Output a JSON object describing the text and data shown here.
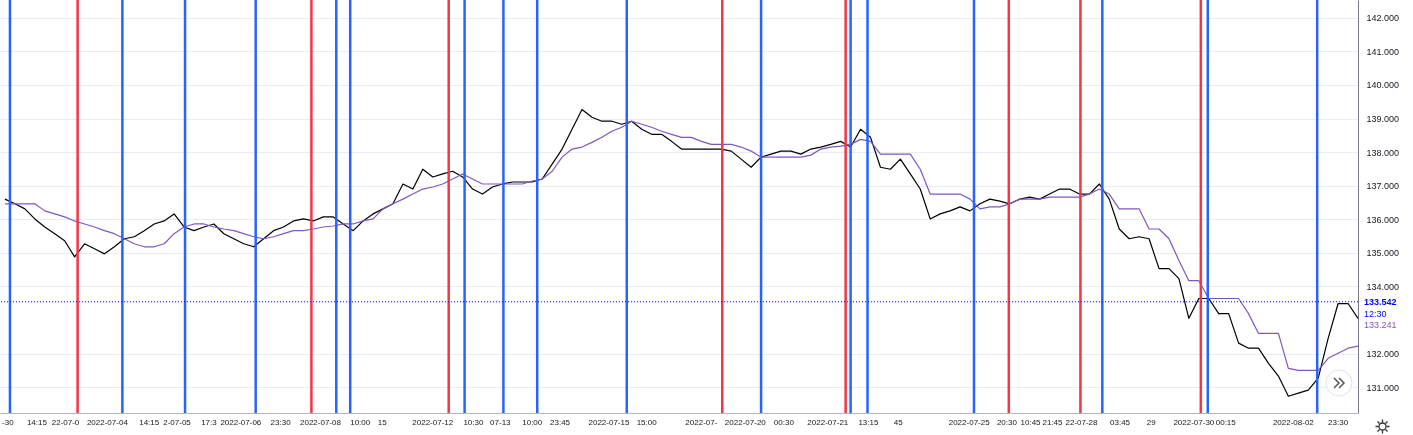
{
  "chart_data": {
    "type": "line",
    "x": [
      "2022-06-30T21:00",
      "2022-07-01T03:00",
      "2022-07-01T09:00",
      "2022-07-01T15:00",
      "2022-07-01T21:00",
      "2022-07-02T03:00",
      "2022-07-02T09:00",
      "2022-07-02T15:00",
      "2022-07-02T21:00",
      "2022-07-03T03:00",
      "2022-07-03T09:00",
      "2022-07-03T15:00",
      "2022-07-03T21:00",
      "2022-07-04T03:00",
      "2022-07-04T09:00",
      "2022-07-04T15:00",
      "2022-07-04T21:00",
      "2022-07-05T03:00",
      "2022-07-05T09:00",
      "2022-07-05T15:00",
      "2022-07-05T21:00",
      "2022-07-06T03:00",
      "2022-07-06T09:00",
      "2022-07-06T15:00",
      "2022-07-06T21:00",
      "2022-07-07T03:00",
      "2022-07-07T09:00",
      "2022-07-07T15:00",
      "2022-07-07T21:00",
      "2022-07-08T03:00",
      "2022-07-08T09:00",
      "2022-07-08T15:00",
      "2022-07-08T21:00",
      "2022-07-09T03:00",
      "2022-07-09T09:00",
      "2022-07-09T15:00",
      "2022-07-09T21:00",
      "2022-07-10T03:00",
      "2022-07-10T09:00",
      "2022-07-10T15:00",
      "2022-07-10T21:00",
      "2022-07-11T03:00",
      "2022-07-11T09:00",
      "2022-07-11T15:00",
      "2022-07-11T21:00",
      "2022-07-12T03:00",
      "2022-07-12T09:00",
      "2022-07-12T15:00",
      "2022-07-12T21:00",
      "2022-07-13T03:00",
      "2022-07-13T09:00",
      "2022-07-13T15:00",
      "2022-07-13T21:00",
      "2022-07-14T03:00",
      "2022-07-14T09:00",
      "2022-07-14T15:00",
      "2022-07-14T21:00",
      "2022-07-15T03:00",
      "2022-07-15T09:00",
      "2022-07-15T15:00",
      "2022-07-15T21:00",
      "2022-07-16T03:00",
      "2022-07-16T09:00",
      "2022-07-16T15:00",
      "2022-07-16T21:00",
      "2022-07-17T03:00",
      "2022-07-17T09:00",
      "2022-07-17T15:00",
      "2022-07-17T21:00",
      "2022-07-18T03:00",
      "2022-07-18T09:00",
      "2022-07-18T15:00",
      "2022-07-18T21:00",
      "2022-07-19T03:00",
      "2022-07-19T09:00",
      "2022-07-19T15:00",
      "2022-07-19T21:00",
      "2022-07-20T03:00",
      "2022-07-20T09:00",
      "2022-07-20T15:00",
      "2022-07-20T21:00",
      "2022-07-21T03:00",
      "2022-07-21T09:00",
      "2022-07-21T15:00",
      "2022-07-21T21:00",
      "2022-07-22T03:00",
      "2022-07-22T09:00",
      "2022-07-22T15:00",
      "2022-07-22T21:00",
      "2022-07-23T03:00",
      "2022-07-23T09:00",
      "2022-07-23T15:00",
      "2022-07-23T21:00",
      "2022-07-24T03:00",
      "2022-07-24T09:00",
      "2022-07-24T15:00",
      "2022-07-24T21:00",
      "2022-07-25T03:00",
      "2022-07-25T09:00",
      "2022-07-25T15:00",
      "2022-07-25T21:00",
      "2022-07-26T03:00",
      "2022-07-26T09:00",
      "2022-07-26T15:00",
      "2022-07-26T21:00",
      "2022-07-27T03:00",
      "2022-07-27T09:00",
      "2022-07-27T15:00",
      "2022-07-27T21:00",
      "2022-07-28T03:00",
      "2022-07-28T09:00",
      "2022-07-28T15:00",
      "2022-07-28T21:00",
      "2022-07-29T03:00",
      "2022-07-29T09:00",
      "2022-07-29T15:00",
      "2022-07-29T21:00",
      "2022-07-30T03:00",
      "2022-07-30T09:00",
      "2022-07-30T15:00",
      "2022-07-30T21:00",
      "2022-07-31T03:00",
      "2022-07-31T09:00",
      "2022-07-31T15:00",
      "2022-07-31T21:00",
      "2022-08-01T03:00",
      "2022-08-01T09:00",
      "2022-08-01T15:00",
      "2022-08-01T21:00",
      "2022-08-02T03:00",
      "2022-08-02T09:00",
      "2022-08-02T15:00",
      "2022-08-02T21:00",
      "2022-08-03T03:00",
      "2022-08-03T09:00",
      "2022-08-03T15:00",
      "2022-08-03T21:00"
    ],
    "series": [
      {
        "color": "#000000",
        "values": [
          136.6,
          136.46,
          136.31,
          136.01,
          135.77,
          135.57,
          135.36,
          134.88,
          135.27,
          135.12,
          134.97,
          135.18,
          135.42,
          135.48,
          135.66,
          135.86,
          135.95,
          136.16,
          135.77,
          135.66,
          135.77,
          135.86,
          135.57,
          135.42,
          135.27,
          135.18,
          135.42,
          135.66,
          135.77,
          135.95,
          136.01,
          135.95,
          136.07,
          136.07,
          135.86,
          135.66,
          135.95,
          136.16,
          136.31,
          136.46,
          137.05,
          136.9,
          137.49,
          137.26,
          137.35,
          137.43,
          137.26,
          136.9,
          136.75,
          136.96,
          137.05,
          137.11,
          137.11,
          137.11,
          137.2,
          137.64,
          138.09,
          138.68,
          139.27,
          139.04,
          138.92,
          138.92,
          138.83,
          138.92,
          138.68,
          138.53,
          138.53,
          138.32,
          138.09,
          138.09,
          138.09,
          138.09,
          138.09,
          138.03,
          137.79,
          137.55,
          137.85,
          137.94,
          138.03,
          138.03,
          137.94,
          138.09,
          138.15,
          138.23,
          138.32,
          138.15,
          138.68,
          138.44,
          137.55,
          137.49,
          137.79,
          137.35,
          136.9,
          136.01,
          136.16,
          136.25,
          136.37,
          136.25,
          136.46,
          136.6,
          136.54,
          136.46,
          136.6,
          136.66,
          136.6,
          136.75,
          136.9,
          136.9,
          136.75,
          136.75,
          137.05,
          136.6,
          135.71,
          135.42,
          135.48,
          135.42,
          134.53,
          134.53,
          134.23,
          133.05,
          133.64,
          133.64,
          133.19,
          133.19,
          132.31,
          132.16,
          132.16,
          131.71,
          131.33,
          130.73,
          130.82,
          130.91,
          131.27,
          132.45,
          133.49,
          133.49,
          133.05
        ]
      },
      {
        "color": "#7e57c2",
        "values": [
          136.46,
          136.46,
          136.46,
          136.46,
          136.25,
          136.16,
          136.07,
          135.95,
          135.86,
          135.77,
          135.66,
          135.57,
          135.42,
          135.27,
          135.18,
          135.18,
          135.27,
          135.57,
          135.77,
          135.86,
          135.86,
          135.77,
          135.71,
          135.66,
          135.57,
          135.48,
          135.42,
          135.48,
          135.57,
          135.66,
          135.66,
          135.71,
          135.77,
          135.8,
          135.86,
          135.86,
          135.95,
          136.01,
          136.31,
          136.46,
          136.6,
          136.75,
          136.9,
          136.96,
          137.05,
          137.2,
          137.35,
          137.2,
          137.05,
          137.05,
          137.05,
          137.05,
          137.05,
          137.14,
          137.2,
          137.43,
          137.85,
          138.09,
          138.15,
          138.29,
          138.44,
          138.62,
          138.74,
          138.92,
          138.83,
          138.74,
          138.62,
          138.53,
          138.44,
          138.44,
          138.32,
          138.23,
          138.23,
          138.23,
          138.15,
          138.03,
          137.85,
          137.85,
          137.85,
          137.85,
          137.85,
          137.91,
          138.09,
          138.15,
          138.18,
          138.23,
          138.38,
          138.32,
          137.94,
          137.94,
          137.94,
          137.94,
          137.49,
          136.75,
          136.75,
          136.75,
          136.75,
          136.6,
          136.31,
          136.37,
          136.37,
          136.46,
          136.6,
          136.6,
          136.6,
          136.66,
          136.66,
          136.66,
          136.66,
          136.75,
          136.9,
          136.75,
          136.31,
          136.31,
          136.31,
          135.71,
          135.71,
          135.42,
          134.77,
          134.17,
          134.17,
          133.64,
          133.64,
          133.64,
          133.64,
          133.19,
          132.6,
          132.6,
          132.6,
          131.56,
          131.5,
          131.5,
          131.5,
          131.86,
          132.01,
          132.16,
          132.22
        ]
      }
    ],
    "xlim": [
      "2022-06-30T18:00",
      "2022-08-03T21:00"
    ],
    "xticks": [
      {
        "value": "2022-06-30T22:45",
        "label": "-30"
      },
      {
        "value": "2022-07-01T16:15",
        "label": "14:15"
      },
      {
        "value": "2022-07-02T09:30",
        "label": "22-07-0"
      },
      {
        "value": "2022-07-03T10:45",
        "label": "2022-07-04"
      },
      {
        "value": "2022-07-04T12:00",
        "label": "14:15"
      },
      {
        "value": "2022-07-05T04:45",
        "label": "2-07-05"
      },
      {
        "value": "2022-07-06T00:00",
        "label": "17:3"
      },
      {
        "value": "2022-07-06T19:15",
        "label": "2022-07-06"
      },
      {
        "value": "2022-07-07T19:15",
        "label": "23:30"
      },
      {
        "value": "2022-07-08T19:15",
        "label": "2022-07-08"
      },
      {
        "value": "2022-07-09T19:15",
        "label": "10:00"
      },
      {
        "value": "2022-07-10T08:30",
        "label": "15"
      },
      {
        "value": "2022-07-11T15:00",
        "label": "2022-07-12"
      },
      {
        "value": "2022-07-12T15:30",
        "label": "10:30"
      },
      {
        "value": "2022-07-13T07:45",
        "label": "07-13"
      },
      {
        "value": "2022-07-14T03:00",
        "label": "10:00"
      },
      {
        "value": "2022-07-14T19:45",
        "label": "23:45"
      },
      {
        "value": "2022-07-16T01:15",
        "label": "2022-07-15"
      },
      {
        "value": "2022-07-17T00:00",
        "label": "15:00"
      },
      {
        "value": "2022-07-18T09:00",
        "label": "2022-07-"
      },
      {
        "value": "2022-07-19T11:30",
        "label": "2022-07-20"
      },
      {
        "value": "2022-07-20T10:45",
        "label": "00:30"
      },
      {
        "value": "2022-07-21T13:15",
        "label": "2022-07-21"
      },
      {
        "value": "2022-07-22T13:45",
        "label": "13:15"
      },
      {
        "value": "2022-07-23T07:45",
        "label": "45"
      },
      {
        "value": "2022-07-25T02:30",
        "label": "2022-07-25"
      },
      {
        "value": "2022-07-26T01:15",
        "label": "20:30"
      },
      {
        "value": "2022-07-26T15:30",
        "label": "10:45"
      },
      {
        "value": "2022-07-27T04:45",
        "label": "21:45"
      },
      {
        "value": "2022-07-27T22:15",
        "label": "22-07-28"
      },
      {
        "value": "2022-07-28T21:30",
        "label": "03:45"
      },
      {
        "value": "2022-07-29T16:15",
        "label": "29"
      },
      {
        "value": "2022-07-30T18:00",
        "label": "2022-07-30"
      },
      {
        "value": "2022-07-31T13:15",
        "label": "00:15"
      },
      {
        "value": "2022-08-02T06:00",
        "label": "2022-08-02"
      },
      {
        "value": "2022-08-03T09:00",
        "label": "23:30"
      }
    ],
    "ylim": [
      130.23,
      142.53
    ],
    "yticks": [
      {
        "value": 131,
        "label": "131.000"
      },
      {
        "value": 132,
        "label": "132.000"
      },
      {
        "value": 134,
        "label": "134.000"
      },
      {
        "value": 135,
        "label": "135.000"
      },
      {
        "value": 136,
        "label": "136.000"
      },
      {
        "value": 137,
        "label": "137.000"
      },
      {
        "value": 138,
        "label": "138.000"
      },
      {
        "value": 139,
        "label": "139.000"
      },
      {
        "value": 140,
        "label": "140.000"
      },
      {
        "value": 141,
        "label": "141.000"
      },
      {
        "value": 142,
        "label": "142.000"
      }
    ],
    "grid": "y",
    "ref_lines": [
      {
        "axis": "x",
        "value": "2022-07-01T00:00",
        "color": "#2962ff"
      },
      {
        "axis": "x",
        "value": "2022-07-02T16:48",
        "color": "#f23645"
      },
      {
        "axis": "x",
        "value": "2022-07-03T19:48",
        "color": "#2962ff"
      },
      {
        "axis": "x",
        "value": "2022-07-05T09:36",
        "color": "#2962ff"
      },
      {
        "axis": "x",
        "value": "2022-07-07T04:12",
        "color": "#2962ff"
      },
      {
        "axis": "x",
        "value": "2022-07-08T13:48",
        "color": "#f23645"
      },
      {
        "axis": "x",
        "value": "2022-07-09T04:48",
        "color": "#2962ff"
      },
      {
        "axis": "x",
        "value": "2022-07-09T13:12",
        "color": "#2962ff"
      },
      {
        "axis": "x",
        "value": "2022-07-12T00:36",
        "color": "#f23645"
      },
      {
        "axis": "x",
        "value": "2022-07-12T10:12",
        "color": "#2962ff"
      },
      {
        "axis": "x",
        "value": "2022-07-13T09:36",
        "color": "#2962ff"
      },
      {
        "axis": "x",
        "value": "2022-07-14T06:00",
        "color": "#2962ff"
      },
      {
        "axis": "x",
        "value": "2022-07-16T12:00",
        "color": "#2962ff"
      },
      {
        "axis": "x",
        "value": "2022-07-18T21:36",
        "color": "#f23645"
      },
      {
        "axis": "x",
        "value": "2022-07-19T21:00",
        "color": "#2962ff"
      },
      {
        "axis": "x",
        "value": "2022-07-22T00:00",
        "color": "#f23645"
      },
      {
        "axis": "x",
        "value": "2022-07-22T03:00",
        "color": "#2962ff"
      },
      {
        "axis": "x",
        "value": "2022-07-22T13:12",
        "color": "#2962ff"
      },
      {
        "axis": "x",
        "value": "2022-07-25T05:24",
        "color": "#2962ff"
      },
      {
        "axis": "x",
        "value": "2022-07-26T02:24",
        "color": "#f23645"
      },
      {
        "axis": "x",
        "value": "2022-07-27T21:36",
        "color": "#f23645"
      },
      {
        "axis": "x",
        "value": "2022-07-28T10:48",
        "color": "#2962ff"
      },
      {
        "axis": "x",
        "value": "2022-07-30T22:12",
        "color": "#f23645"
      },
      {
        "axis": "x",
        "value": "2022-07-31T02:24",
        "color": "#2962ff"
      },
      {
        "axis": "x",
        "value": "2022-08-02T20:24",
        "color": "#2962ff"
      },
      {
        "axis": "y",
        "value": 133.542,
        "label": "133.542",
        "color": "#0000ff",
        "line_style": "dotted"
      }
    ],
    "annotations": [
      "12:30",
      "133.241"
    ]
  }
}
